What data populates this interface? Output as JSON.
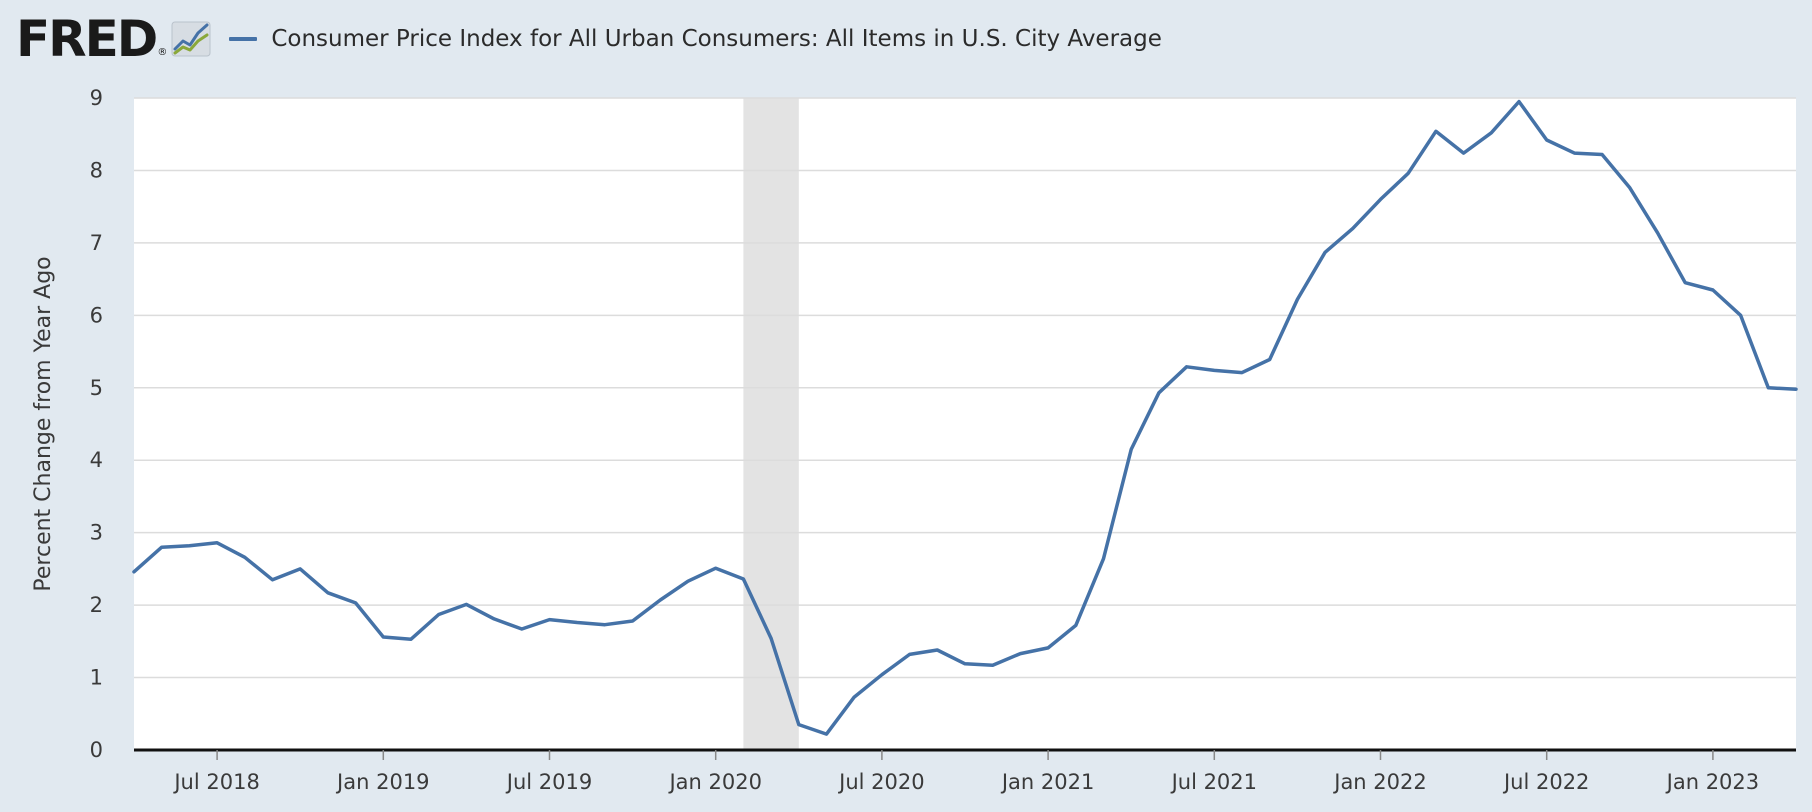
{
  "legend": {
    "label": "Consumer Price Index for All Urban Consumers: All Items in U.S. City Average"
  },
  "colors": {
    "series": "#4572a7",
    "recession": "#e3e3e3",
    "grid": "#dcdcdc",
    "background": "#e1e9f0",
    "plot": "#ffffff"
  },
  "chart_data": {
    "type": "line",
    "title": "",
    "ylabel": "Percent Change from Year Ago",
    "ylim": [
      0,
      9
    ],
    "yticks": [
      0,
      1,
      2,
      3,
      4,
      5,
      6,
      7,
      8,
      9
    ],
    "xlim": [
      "2018-04",
      "2023-04"
    ],
    "xticks": [
      {
        "date": "2018-07",
        "label": "Jul 2018"
      },
      {
        "date": "2019-01",
        "label": "Jan 2019"
      },
      {
        "date": "2019-07",
        "label": "Jul 2019"
      },
      {
        "date": "2020-01",
        "label": "Jan 2020"
      },
      {
        "date": "2020-07",
        "label": "Jul 2020"
      },
      {
        "date": "2021-01",
        "label": "Jan 2021"
      },
      {
        "date": "2021-07",
        "label": "Jul 2021"
      },
      {
        "date": "2022-01",
        "label": "Jan 2022"
      },
      {
        "date": "2022-07",
        "label": "Jul 2022"
      },
      {
        "date": "2023-01",
        "label": "Jan 2023"
      }
    ],
    "recession": {
      "start": "2020-02",
      "end": "2020-04"
    },
    "grid": true,
    "legend_position": "top",
    "series": [
      {
        "name": "Consumer Price Index for All Urban Consumers: All Items in U.S. City Average",
        "points": [
          [
            "2018-04",
            2.46
          ],
          [
            "2018-05",
            2.8
          ],
          [
            "2018-06",
            2.82
          ],
          [
            "2018-07",
            2.86
          ],
          [
            "2018-08",
            2.66
          ],
          [
            "2018-09",
            2.35
          ],
          [
            "2018-10",
            2.5
          ],
          [
            "2018-11",
            2.17
          ],
          [
            "2018-12",
            2.03
          ],
          [
            "2019-01",
            1.56
          ],
          [
            "2019-02",
            1.53
          ],
          [
            "2019-03",
            1.87
          ],
          [
            "2019-04",
            2.01
          ],
          [
            "2019-05",
            1.81
          ],
          [
            "2019-06",
            1.67
          ],
          [
            "2019-07",
            1.8
          ],
          [
            "2019-08",
            1.76
          ],
          [
            "2019-09",
            1.73
          ],
          [
            "2019-10",
            1.78
          ],
          [
            "2019-11",
            2.07
          ],
          [
            "2019-12",
            2.33
          ],
          [
            "2020-01",
            2.51
          ],
          [
            "2020-02",
            2.36
          ],
          [
            "2020-03",
            1.54
          ],
          [
            "2020-04",
            0.35
          ],
          [
            "2020-05",
            0.22
          ],
          [
            "2020-06",
            0.73
          ],
          [
            "2020-07",
            1.04
          ],
          [
            "2020-08",
            1.32
          ],
          [
            "2020-09",
            1.38
          ],
          [
            "2020-10",
            1.19
          ],
          [
            "2020-11",
            1.17
          ],
          [
            "2020-12",
            1.33
          ],
          [
            "2021-01",
            1.41
          ],
          [
            "2021-02",
            1.72
          ],
          [
            "2021-03",
            2.64
          ],
          [
            "2021-04",
            4.15
          ],
          [
            "2021-05",
            4.93
          ],
          [
            "2021-06",
            5.29
          ],
          [
            "2021-07",
            5.24
          ],
          [
            "2021-08",
            5.21
          ],
          [
            "2021-09",
            5.39
          ],
          [
            "2021-10",
            6.22
          ],
          [
            "2021-11",
            6.87
          ],
          [
            "2021-12",
            7.2
          ],
          [
            "2022-01",
            7.6
          ],
          [
            "2022-02",
            7.96
          ],
          [
            "2022-03",
            8.54
          ],
          [
            "2022-04",
            8.24
          ],
          [
            "2022-05",
            8.52
          ],
          [
            "2022-06",
            8.95
          ],
          [
            "2022-07",
            8.42
          ],
          [
            "2022-08",
            8.24
          ],
          [
            "2022-09",
            8.22
          ],
          [
            "2022-10",
            7.76
          ],
          [
            "2022-11",
            7.14
          ],
          [
            "2022-12",
            6.45
          ],
          [
            "2023-01",
            6.35
          ],
          [
            "2023-02",
            6.0
          ],
          [
            "2023-03",
            5.0
          ],
          [
            "2023-04",
            4.98
          ]
        ]
      }
    ]
  }
}
